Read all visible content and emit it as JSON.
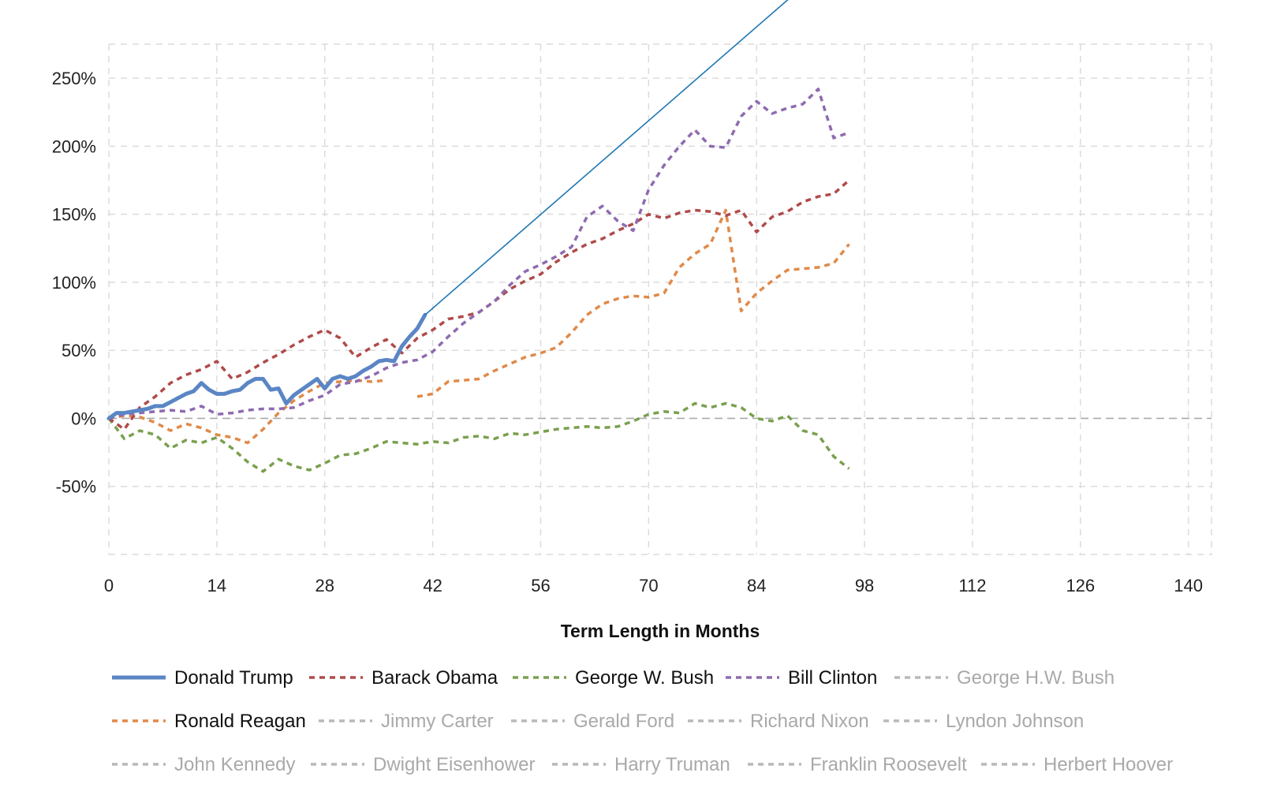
{
  "chart_data": {
    "type": "line",
    "xlabel": "Term Length in Months",
    "ylabel": "",
    "xlim": [
      0,
      143
    ],
    "ylim": [
      -100,
      275
    ],
    "x_ticks": [
      0,
      14,
      28,
      42,
      56,
      70,
      84,
      98,
      112,
      126,
      140
    ],
    "y_ticks": [
      -50,
      0,
      50,
      100,
      150,
      200,
      250
    ],
    "y_tick_labels": [
      "-50%",
      "0%",
      "50%",
      "100%",
      "150%",
      "200%",
      "250%"
    ],
    "grid": true,
    "legend_placement": "bottom",
    "colors": {
      "trump": "#5b86c5",
      "obama": "#b04b4b",
      "bush": "#7aa04f",
      "clinton": "#8e6bb0",
      "reagan": "#e08a4a",
      "inactive": "#b9b9b9",
      "trendline": "#1f77b4",
      "active_text": "#111111",
      "inactive_text": "#a9a9a9"
    },
    "series": [
      {
        "name": "Donald Trump",
        "key": "trump",
        "style": "solid",
        "active": true,
        "x": [
          0,
          1,
          2,
          3,
          4,
          5,
          6,
          7,
          8,
          9,
          10,
          11,
          12,
          13,
          14,
          15,
          16,
          17,
          18,
          19,
          20,
          21,
          22,
          23,
          24,
          25,
          26,
          27,
          28,
          29,
          30,
          31,
          32,
          33,
          34,
          35,
          36,
          37,
          38,
          39,
          40,
          41
        ],
        "y": [
          0,
          4,
          4,
          5,
          6,
          7,
          9,
          9,
          12,
          15,
          18,
          20,
          26,
          21,
          18,
          18,
          20,
          21,
          26,
          29,
          29,
          21,
          22,
          11,
          17,
          21,
          25,
          29,
          22,
          29,
          31,
          29,
          31,
          35,
          38,
          42,
          43,
          42,
          53,
          60,
          66,
          76
        ]
      },
      {
        "name": "Barack Obama",
        "key": "obama",
        "style": "dashed",
        "active": true,
        "x": [
          0,
          2,
          4,
          6,
          8,
          10,
          12,
          14,
          16,
          18,
          20,
          22,
          24,
          26,
          28,
          30,
          32,
          34,
          36,
          38,
          40,
          42,
          44,
          46,
          48,
          50,
          52,
          54,
          56,
          58,
          60,
          62,
          64,
          66,
          68,
          70,
          72,
          74,
          76,
          78,
          80,
          82,
          84,
          86,
          88,
          90,
          92,
          94,
          96
        ],
        "y": [
          0,
          -8,
          8,
          16,
          26,
          32,
          36,
          42,
          29,
          34,
          41,
          47,
          54,
          60,
          65,
          59,
          45,
          52,
          58,
          48,
          59,
          65,
          73,
          75,
          78,
          86,
          95,
          101,
          106,
          115,
          122,
          128,
          132,
          138,
          143,
          150,
          147,
          151,
          153,
          152,
          149,
          153,
          137,
          148,
          152,
          159,
          163,
          165,
          175
        ]
      },
      {
        "name": "George W. Bush",
        "key": "bush",
        "style": "dashed",
        "active": true,
        "x": [
          0,
          2,
          4,
          6,
          8,
          10,
          12,
          14,
          16,
          18,
          20,
          22,
          24,
          26,
          28,
          30,
          32,
          34,
          36,
          38,
          40,
          42,
          44,
          46,
          48,
          50,
          52,
          54,
          56,
          58,
          60,
          62,
          64,
          66,
          68,
          70,
          72,
          74,
          76,
          78,
          80,
          82,
          84,
          86,
          88,
          90,
          92,
          94,
          96
        ],
        "y": [
          0,
          -15,
          -9,
          -12,
          -22,
          -16,
          -18,
          -14,
          -22,
          -32,
          -39,
          -30,
          -35,
          -38,
          -33,
          -27,
          -26,
          -22,
          -17,
          -18,
          -19,
          -17,
          -18,
          -14,
          -13,
          -15,
          -11,
          -12,
          -10,
          -8,
          -7,
          -6,
          -7,
          -6,
          -2,
          3,
          5,
          4,
          11,
          8,
          11,
          8,
          0,
          -2,
          2,
          -9,
          -12,
          -28,
          -37
        ]
      },
      {
        "name": "Bill Clinton",
        "key": "clinton",
        "style": "dashed",
        "active": true,
        "x": [
          0,
          2,
          4,
          6,
          8,
          10,
          12,
          14,
          16,
          18,
          20,
          22,
          24,
          26,
          28,
          30,
          32,
          34,
          36,
          38,
          40,
          42,
          44,
          46,
          48,
          50,
          52,
          54,
          56,
          58,
          60,
          62,
          64,
          66,
          68,
          70,
          72,
          74,
          76,
          78,
          80,
          82,
          84,
          86,
          88,
          90,
          92,
          94,
          96
        ],
        "y": [
          0,
          3,
          4,
          5,
          6,
          5,
          9,
          3,
          4,
          6,
          7,
          7,
          8,
          13,
          17,
          25,
          27,
          31,
          37,
          41,
          43,
          49,
          60,
          70,
          78,
          86,
          98,
          108,
          113,
          119,
          126,
          148,
          156,
          145,
          138,
          168,
          186,
          200,
          212,
          200,
          199,
          222,
          233,
          224,
          228,
          231,
          242,
          206,
          210
        ]
      },
      {
        "name": "George H.W. Bush",
        "key": "inactive",
        "style": "dashed",
        "active": false,
        "x": [],
        "y": []
      },
      {
        "name": "Ronald Reagan",
        "key": "reagan",
        "style": "dashed",
        "active": true,
        "x": [
          0,
          2,
          4,
          6,
          8,
          10,
          12,
          14,
          16,
          18,
          20,
          22,
          24,
          26,
          28,
          30,
          32,
          34,
          36,
          38,
          40,
          42,
          44,
          46,
          48,
          50,
          52,
          54,
          56,
          58,
          60,
          62,
          64,
          66,
          68,
          70,
          72,
          74,
          76,
          78,
          80,
          82,
          84,
          86,
          88,
          90,
          92,
          94,
          96
        ],
        "y": [
          0,
          2,
          1,
          -3,
          -9,
          -4,
          -7,
          -12,
          -14,
          -18,
          -8,
          4,
          13,
          20,
          26,
          27,
          28,
          27,
          28,
          null,
          16,
          18,
          27,
          28,
          29,
          35,
          40,
          45,
          48,
          52,
          63,
          76,
          84,
          88,
          90,
          89,
          92,
          111,
          121,
          128,
          153,
          79,
          92,
          101,
          109,
          110,
          111,
          114,
          128
        ]
      },
      {
        "name": "Jimmy Carter",
        "key": "inactive",
        "style": "dashed",
        "active": false,
        "x": [],
        "y": []
      },
      {
        "name": "Gerald Ford",
        "key": "inactive",
        "style": "dashed",
        "active": false,
        "x": [],
        "y": []
      },
      {
        "name": "Richard Nixon",
        "key": "inactive",
        "style": "dashed",
        "active": false,
        "x": [],
        "y": []
      },
      {
        "name": "Lyndon Johnson",
        "key": "inactive",
        "style": "dashed",
        "active": false,
        "x": [],
        "y": []
      },
      {
        "name": "John Kennedy",
        "key": "inactive",
        "style": "dashed",
        "active": false,
        "x": [],
        "y": []
      },
      {
        "name": "Dwight Eisenhower",
        "key": "inactive",
        "style": "dashed",
        "active": false,
        "x": [],
        "y": []
      },
      {
        "name": "Harry Truman",
        "key": "inactive",
        "style": "dashed",
        "active": false,
        "x": [],
        "y": []
      },
      {
        "name": "Franklin Roosevelt",
        "key": "inactive",
        "style": "dashed",
        "active": false,
        "x": [],
        "y": []
      },
      {
        "name": "Herbert Hoover",
        "key": "inactive",
        "style": "dashed",
        "active": false,
        "x": [],
        "y": []
      }
    ],
    "trendline": {
      "x": [
        41,
        93
      ],
      "y": [
        76,
        332
      ]
    }
  }
}
